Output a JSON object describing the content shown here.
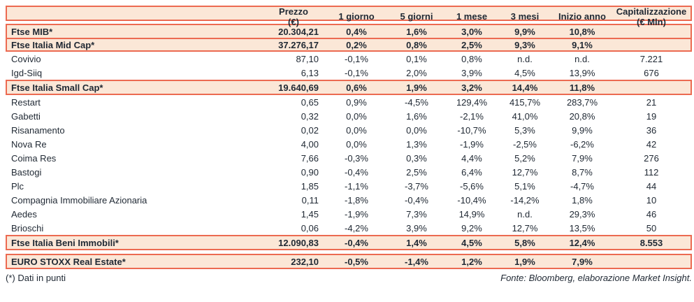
{
  "colors": {
    "accent_border": "#ec6a51",
    "row_highlight": "#fbe7d7",
    "text": "#1f2833"
  },
  "table": {
    "header": {
      "cols": [
        {
          "top": "",
          "bottom": ""
        },
        {
          "top": "Prezzo",
          "bottom": "(€)"
        },
        {
          "top": "1 giorno",
          "bottom": ""
        },
        {
          "top": "5 giorni",
          "bottom": ""
        },
        {
          "top": "1 mese",
          "bottom": ""
        },
        {
          "top": "3 mesi",
          "bottom": ""
        },
        {
          "top": "Inizio anno",
          "bottom": ""
        },
        {
          "top": "Capitalizzazione",
          "bottom": "(€ Mln)"
        }
      ]
    },
    "sections": [
      {
        "type": "box",
        "rows": [
          {
            "name": "Ftse MIB*",
            "values": [
              "20.304,21",
              "0,4%",
              "1,6%",
              "3,0%",
              "9,9%",
              "10,8%",
              ""
            ]
          },
          {
            "name": "Ftse Italia Mid Cap*",
            "values": [
              "37.276,17",
              "0,2%",
              "0,8%",
              "2,5%",
              "9,3%",
              "9,1%",
              ""
            ]
          }
        ]
      },
      {
        "type": "plain",
        "rows": [
          {
            "name": "Covivio",
            "values": [
              "87,10",
              "-0,1%",
              "0,1%",
              "0,8%",
              "n.d.",
              "n.d.",
              "7.221"
            ]
          },
          {
            "name": "Igd-Siiq",
            "values": [
              "6,13",
              "-0,1%",
              "2,0%",
              "3,9%",
              "4,5%",
              "13,9%",
              "676"
            ]
          }
        ]
      },
      {
        "type": "box",
        "rows": [
          {
            "name": "Ftse Italia Small Cap*",
            "values": [
              "19.640,69",
              "0,6%",
              "1,9%",
              "3,2%",
              "14,4%",
              "11,8%",
              ""
            ]
          }
        ]
      },
      {
        "type": "plain",
        "rows": [
          {
            "name": "Restart",
            "values": [
              "0,65",
              "0,9%",
              "-4,5%",
              "129,4%",
              "415,7%",
              "283,7%",
              "21"
            ]
          },
          {
            "name": "Gabetti",
            "values": [
              "0,32",
              "0,0%",
              "1,6%",
              "-2,1%",
              "41,0%",
              "20,8%",
              "19"
            ]
          },
          {
            "name": "Risanamento",
            "values": [
              "0,02",
              "0,0%",
              "0,0%",
              "-10,7%",
              "5,3%",
              "9,9%",
              "36"
            ]
          },
          {
            "name": "Nova Re",
            "values": [
              "4,00",
              "0,0%",
              "1,3%",
              "-1,9%",
              "-2,5%",
              "-6,2%",
              "42"
            ]
          },
          {
            "name": "Coima Res",
            "values": [
              "7,66",
              "-0,3%",
              "0,3%",
              "4,4%",
              "5,2%",
              "7,9%",
              "276"
            ]
          },
          {
            "name": "Bastogi",
            "values": [
              "0,90",
              "-0,4%",
              "2,5%",
              "6,4%",
              "12,7%",
              "8,7%",
              "112"
            ]
          },
          {
            "name": "Plc",
            "values": [
              "1,85",
              "-1,1%",
              "-3,7%",
              "-5,6%",
              "5,1%",
              "-4,7%",
              "44"
            ]
          },
          {
            "name": "Compagnia Immobiliare Azionaria",
            "values": [
              "0,11",
              "-1,8%",
              "-0,4%",
              "-10,4%",
              "-14,2%",
              "1,8%",
              "10"
            ]
          },
          {
            "name": "Aedes",
            "values": [
              "1,45",
              "-1,9%",
              "7,3%",
              "14,9%",
              "n.d.",
              "29,3%",
              "46"
            ]
          },
          {
            "name": "Brioschi",
            "values": [
              "0,06",
              "-4,2%",
              "3,9%",
              "9,2%",
              "12,7%",
              "13,5%",
              "50"
            ]
          }
        ]
      },
      {
        "type": "box",
        "rows": [
          {
            "name": "Ftse Italia Beni Immobili*",
            "values": [
              "12.090,83",
              "-0,4%",
              "1,4%",
              "4,5%",
              "5,8%",
              "12,4%",
              "8.553"
            ]
          }
        ]
      },
      {
        "type": "gap"
      },
      {
        "type": "box",
        "rows": [
          {
            "name": "EURO STOXX Real Estate*",
            "values": [
              "232,10",
              "-0,5%",
              "-1,4%",
              "1,2%",
              "1,9%",
              "7,9%",
              ""
            ]
          }
        ]
      }
    ]
  },
  "footer": {
    "note": "(*) Dati in punti",
    "source": "Fonte: Bloomberg, elaborazione Market Insight."
  }
}
